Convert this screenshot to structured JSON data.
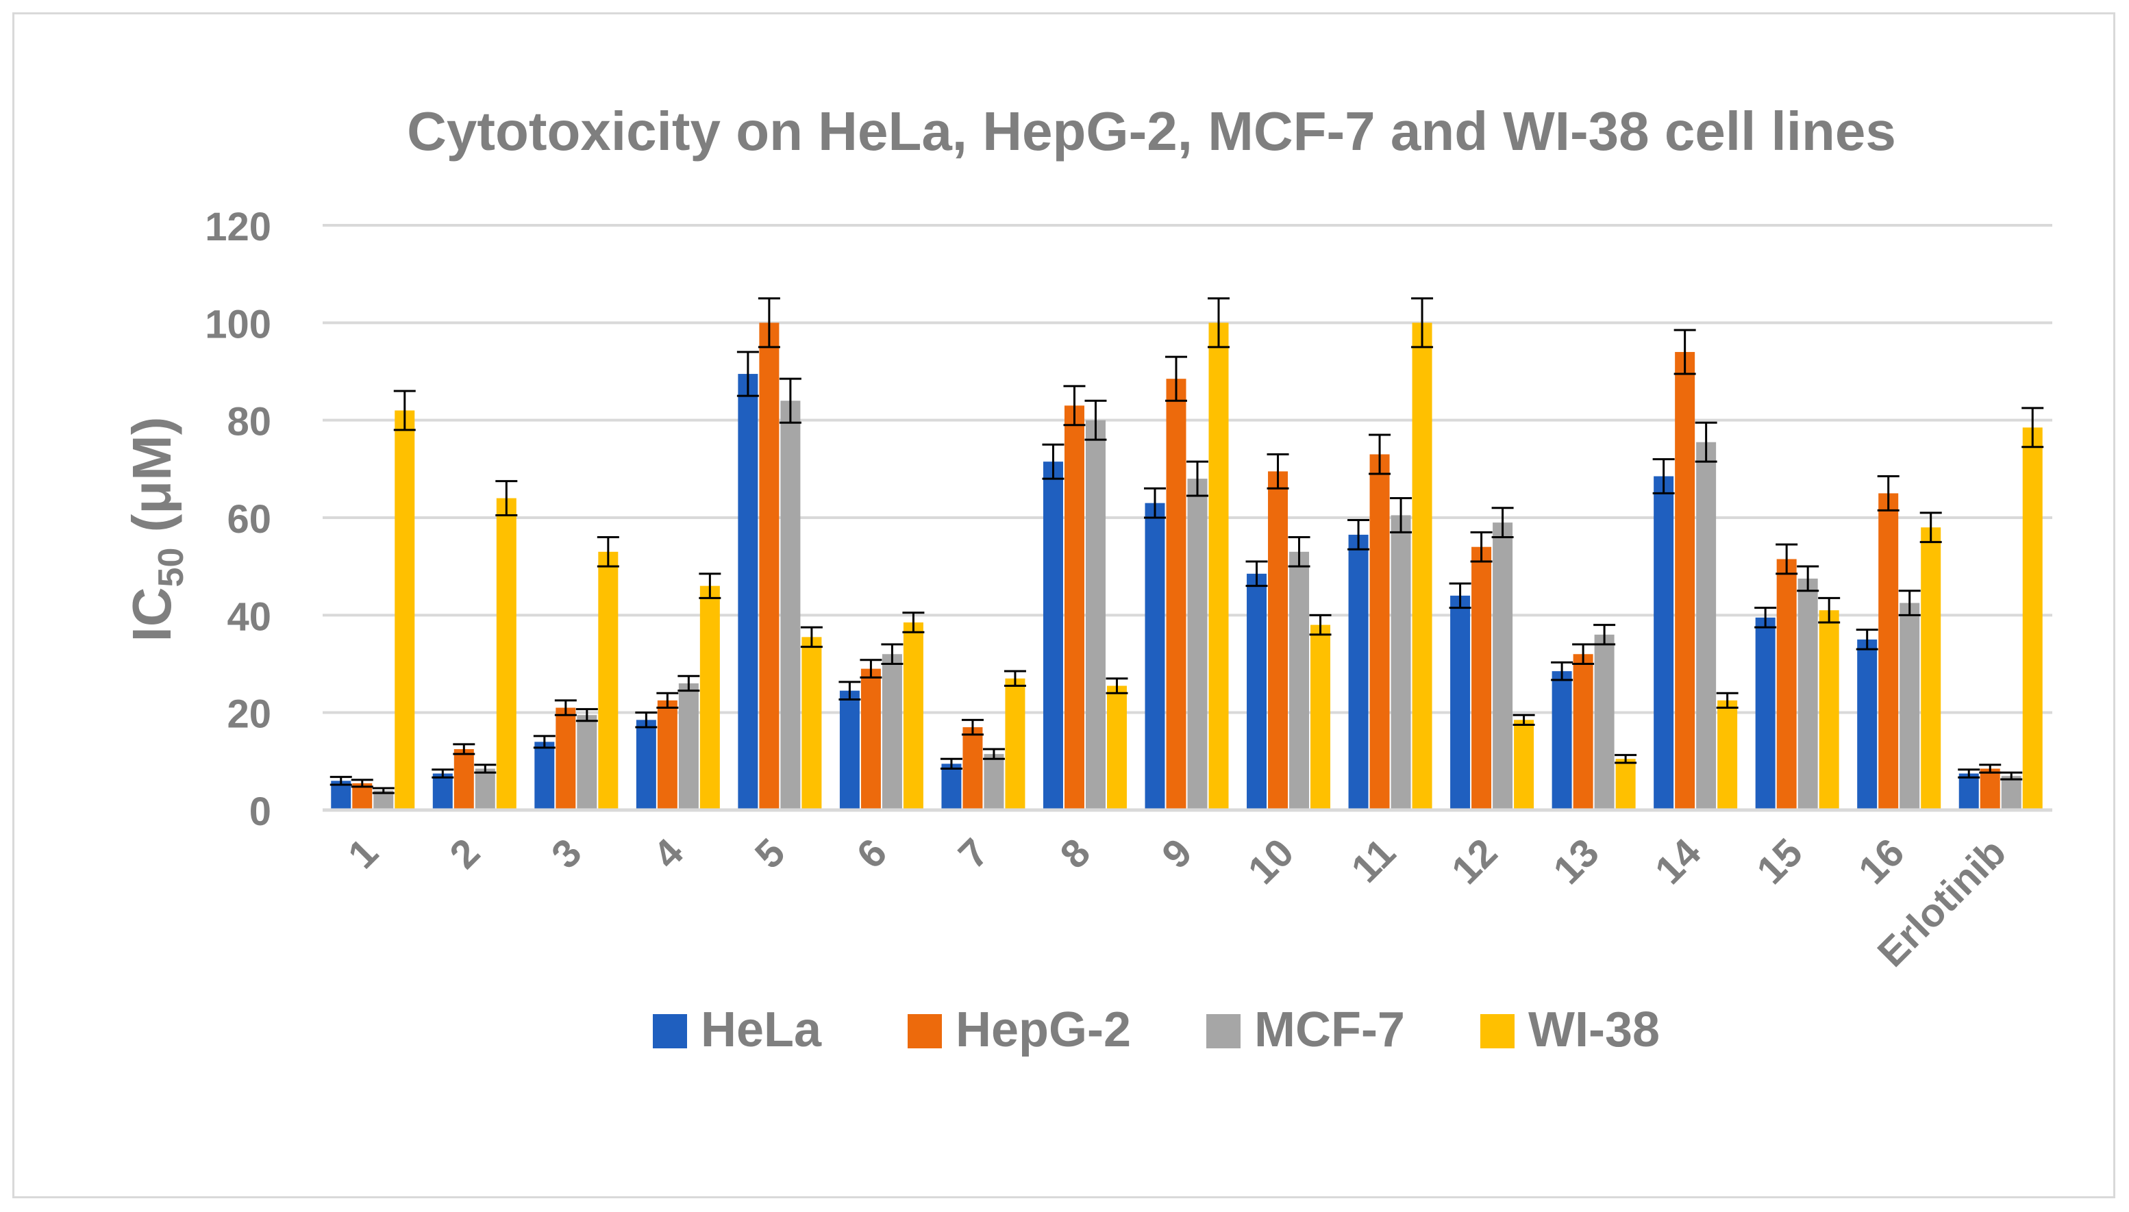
{
  "chart_data": {
    "type": "bar",
    "title": "Cytotoxicity on HeLa, HepG-2, MCF-7 and WI-38 cell lines",
    "ylabel_main": "IC",
    "ylabel_sub": "50",
    "ylabel_unit": " (μM)",
    "xlabel": "",
    "ylim": [
      0,
      120
    ],
    "yticks": [
      0,
      20,
      40,
      60,
      80,
      100,
      120
    ],
    "grid": true,
    "legend_position": "bottom",
    "categories": [
      "1",
      "2",
      "3",
      "4",
      "5",
      "6",
      "7",
      "8",
      "9",
      "10",
      "11",
      "12",
      "13",
      "14",
      "15",
      "16",
      "Erlotinib"
    ],
    "series": [
      {
        "name": "HeLa",
        "color": "#1f5fbf",
        "values": [
          6,
          7.5,
          14,
          18.5,
          89.5,
          24.5,
          9.5,
          71.5,
          63,
          48.5,
          56.5,
          44,
          28.5,
          68.5,
          39.5,
          35,
          7.5
        ],
        "errors": [
          0.8,
          0.8,
          1.2,
          1.5,
          4.5,
          1.8,
          1,
          3.5,
          3,
          2.5,
          3,
          2.5,
          1.8,
          3.5,
          2,
          2,
          0.8
        ]
      },
      {
        "name": "HepG-2",
        "color": "#ed6a0c",
        "values": [
          5.5,
          12.5,
          21,
          22.5,
          100,
          29,
          17,
          83,
          88.5,
          69.5,
          73,
          54,
          32,
          94,
          51.5,
          65,
          8.5
        ],
        "errors": [
          0.7,
          1,
          1.5,
          1.5,
          5,
          1.8,
          1.5,
          4,
          4.5,
          3.5,
          4,
          3,
          2,
          4.5,
          3,
          3.5,
          0.8
        ]
      },
      {
        "name": "MCF-7",
        "color": "#a6a6a6",
        "values": [
          4,
          8.5,
          19.5,
          26,
          84,
          32,
          11.5,
          80,
          68,
          53,
          60.5,
          59,
          36,
          75.5,
          47.5,
          42.5,
          7
        ],
        "errors": [
          0.5,
          0.8,
          1.2,
          1.5,
          4.5,
          2,
          1,
          4,
          3.5,
          3,
          3.5,
          3,
          2,
          4,
          2.5,
          2.5,
          0.7
        ]
      },
      {
        "name": "WI-38",
        "color": "#ffc000",
        "values": [
          82,
          64,
          53,
          46,
          35.5,
          38.5,
          27,
          25.5,
          100,
          38,
          100,
          18.5,
          10.5,
          22.5,
          41,
          58,
          78.5
        ],
        "errors": [
          4,
          3.5,
          3,
          2.5,
          2,
          2,
          1.5,
          1.5,
          5,
          2,
          5,
          1,
          0.8,
          1.5,
          2.5,
          3,
          4
        ]
      }
    ]
  }
}
